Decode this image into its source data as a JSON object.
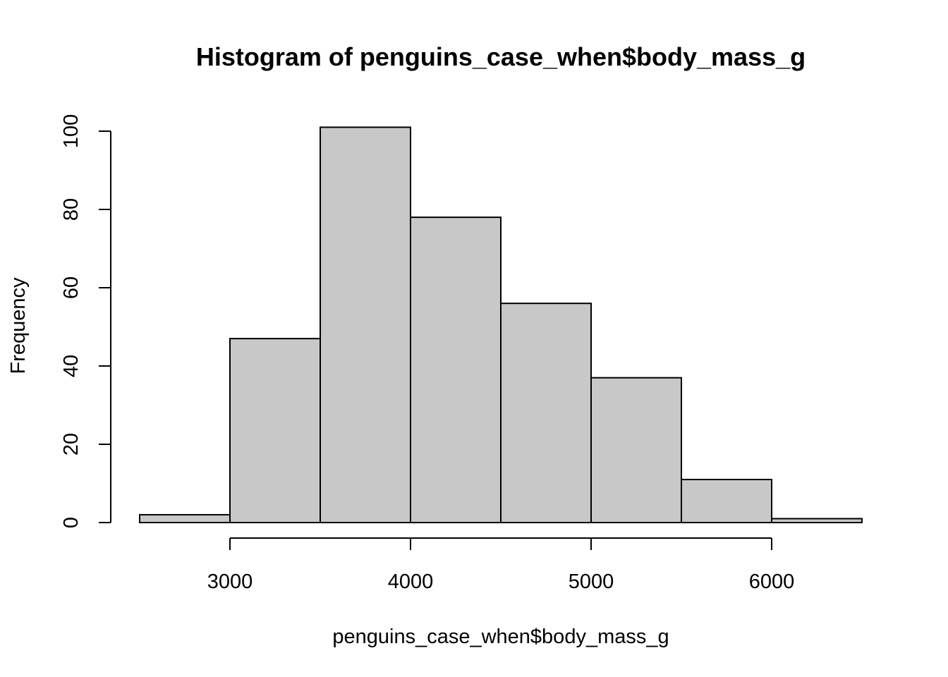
{
  "chart_data": {
    "type": "bar",
    "title": "Histogram of penguins_case_when$body_mass_g",
    "xlabel": "penguins_case_when$body_mass_g",
    "ylabel": "Frequency",
    "bins": [
      {
        "start": 2500,
        "end": 3000,
        "count": 2
      },
      {
        "start": 3000,
        "end": 3500,
        "count": 47
      },
      {
        "start": 3500,
        "end": 4000,
        "count": 101
      },
      {
        "start": 4000,
        "end": 4500,
        "count": 78
      },
      {
        "start": 4500,
        "end": 5000,
        "count": 56
      },
      {
        "start": 5000,
        "end": 5500,
        "count": 37
      },
      {
        "start": 5500,
        "end": 6000,
        "count": 11
      },
      {
        "start": 6000,
        "end": 6500,
        "count": 1
      }
    ],
    "xlim": [
      2500,
      6500
    ],
    "ylim": [
      0,
      100
    ],
    "x_ticks": [
      3000,
      4000,
      5000,
      6000
    ],
    "x_tick_labels": [
      "3000",
      "4000",
      "5000",
      "6000"
    ],
    "y_ticks": [
      0,
      20,
      40,
      60,
      80,
      100
    ],
    "y_tick_labels": [
      "0",
      "20",
      "40",
      "60",
      "80",
      "100"
    ],
    "bar_color": "#c8c8c8",
    "grid": false,
    "legend": "none"
  }
}
